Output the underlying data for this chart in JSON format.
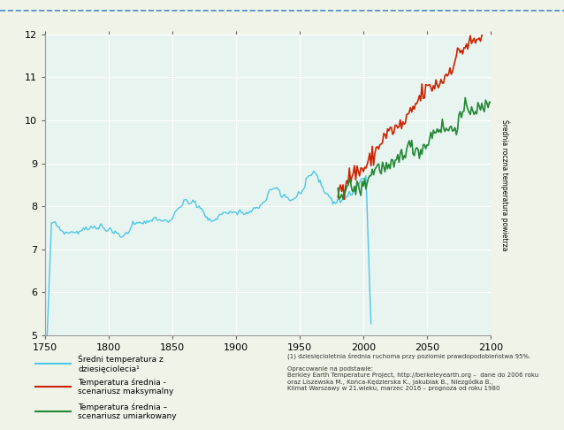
{
  "xlim": [
    1750,
    2100
  ],
  "ylim": [
    5,
    12
  ],
  "yticks": [
    5,
    6,
    7,
    8,
    9,
    10,
    11,
    12
  ],
  "xticks": [
    1750,
    1800,
    1850,
    1900,
    1950,
    2000,
    2050,
    2100
  ],
  "plot_bg": "#e8f4f0",
  "outer_bg": "#f0f4e8",
  "right_strip_bg": "#d4e8c8",
  "grid_color": "#ffffff",
  "border_color": "#aaaaaa",
  "ylabel_right": "Średnia roczna temperatura powietrza",
  "blue_color": "#4dc8e8",
  "red_color": "#cc2200",
  "green_color": "#228833",
  "legend_label_blue": "Średni temperatura z\ndziesięciolecia¹",
  "legend_label_red": "Temperatura średnia -\nscenariusz maksymalny",
  "legend_label_green": "Temperatura średnia –\nscenariusz umiarkowany",
  "footnote1": "(1) dziesięcioletnia średnia ruchoma przy poziomie prawdopodobieństwa 95%.",
  "footnote2": "Opracowanie na podstawie:\nBerkley Earth Temperature Project, http://berkeleyearth.org –  dane do 2006 roku\noraz Liszewska M., Końca-Kędzierska K., Jakubiak B., Niezgódka B.,\nKlimat Warszawy w 21.wieku, marzec 2016 – prognoza od roku 1980"
}
